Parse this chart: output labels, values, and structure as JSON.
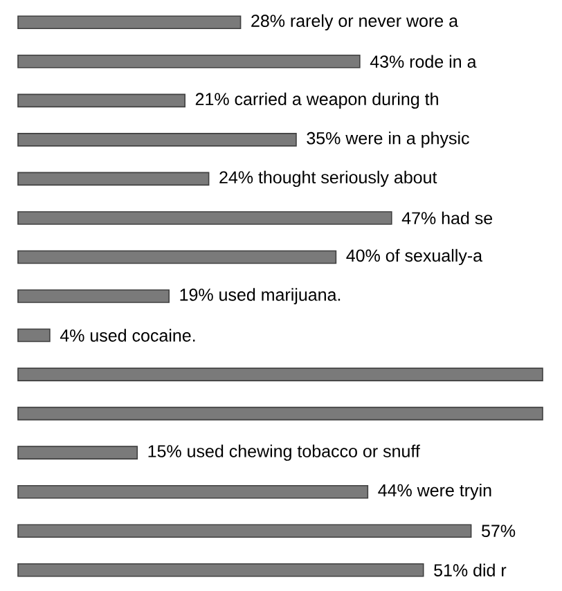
{
  "chart_data": {
    "type": "bar",
    "orientation": "horizontal",
    "categories": [
      null,
      null,
      null,
      null,
      null,
      null,
      null,
      null,
      null,
      null,
      null,
      null,
      null,
      null,
      null
    ],
    "values": [
      28,
      43,
      21,
      35,
      24,
      47,
      40,
      19,
      4,
      66,
      66,
      15,
      44,
      57,
      51
    ],
    "value_labels": [
      "28% rarely or never wore a",
      "43% rode in a",
      "21% carried a weapon during th",
      "35% were in a physic",
      "24% thought seriously about",
      "47% had se",
      "40% of sexually-a",
      "19% used marijuana.",
      "4% used cocaine.",
      null,
      null,
      "15% used chewing tobacco or snuff",
      "44% were tryin",
      "57%",
      "51% did r"
    ],
    "color": "#7a7a7a",
    "xlim": [
      0,
      66
    ]
  }
}
